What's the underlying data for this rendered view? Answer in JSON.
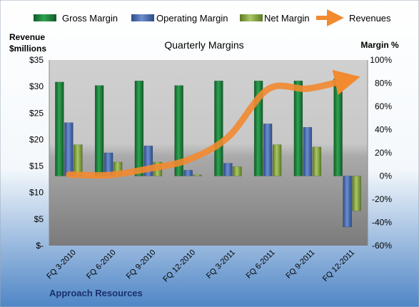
{
  "chart_data": {
    "type": "bar",
    "title": "Quarterly Margins",
    "left_axis_label": [
      "Revenue",
      "$millions"
    ],
    "right_axis_label": "Margin %",
    "left_ticks": [
      "$35",
      "$30",
      "$25",
      "$20",
      "$15",
      "$10",
      "$5",
      "$-"
    ],
    "right_ticks": [
      "100%",
      "80%",
      "60%",
      "40%",
      "20%",
      "0%",
      "-20%",
      "-40%",
      "-60%"
    ],
    "left_ylim": [
      0,
      35
    ],
    "right_ylim": [
      -60,
      100
    ],
    "categories": [
      "FQ 3-2010",
      "FQ 6-2010",
      "FQ 9-2010",
      "FQ 12-2010",
      "FQ 3-2011",
      "FQ 6-2011",
      "FQ 9-2011",
      "FQ 12-2011"
    ],
    "series": [
      {
        "name": "Gross Margin",
        "type": "bar",
        "axis": "right",
        "color": "#1e8a3c",
        "values": [
          81,
          78,
          82,
          78,
          82,
          82,
          82,
          84
        ]
      },
      {
        "name": "Operating Margin",
        "type": "bar",
        "axis": "right",
        "color": "#4a6fb5",
        "values": [
          46,
          20,
          26,
          5,
          11,
          45,
          42,
          -44
        ]
      },
      {
        "name": "Net Margin",
        "type": "bar",
        "axis": "right",
        "color": "#8fb04a",
        "values": [
          27,
          12,
          12,
          1,
          8,
          27,
          25,
          -30
        ]
      },
      {
        "name": "Revenues",
        "type": "line",
        "axis": "left",
        "color": "#f28a30",
        "values": [
          13.4,
          13.3,
          14.5,
          16.2,
          20.5,
          29.5,
          29.6,
          31.3
        ]
      }
    ],
    "legend_position": "top",
    "grid": false
  },
  "footer": {
    "company": "Approach Resources"
  }
}
